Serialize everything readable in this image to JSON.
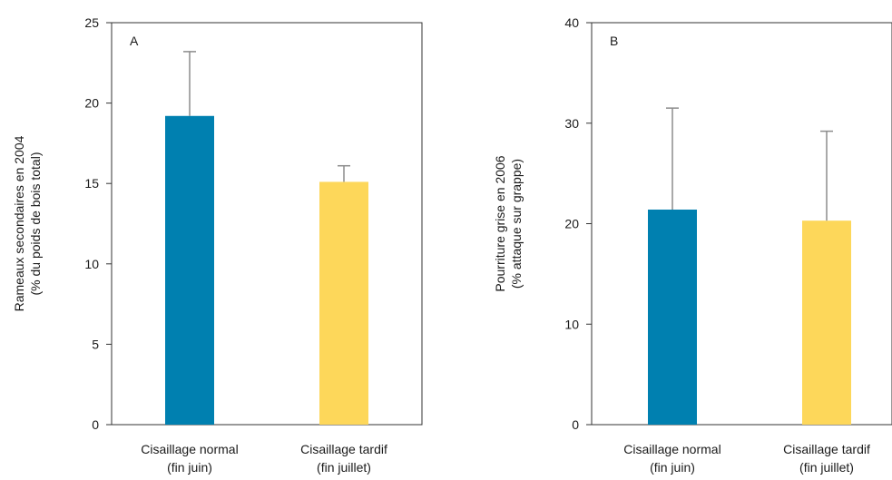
{
  "chart_data": [
    {
      "type": "bar",
      "panel_label": "A",
      "ylabel_lines": [
        "Rameaux secondaires en 2004",
        "(% du poids de bois total)"
      ],
      "ylim": [
        0,
        25
      ],
      "yticks": [
        0,
        5,
        10,
        15,
        20,
        25
      ],
      "categories": [
        {
          "line1": "Cisaillage normal",
          "line2": "(fin juin)"
        },
        {
          "line1": "Cisaillage tardif",
          "line2": "(fin juillet)"
        }
      ],
      "values": [
        19.2,
        15.1
      ],
      "errors": [
        4.0,
        1.0
      ],
      "colors": [
        "#0080b0",
        "#fdd75a"
      ]
    },
    {
      "type": "bar",
      "panel_label": "B",
      "ylabel_lines": [
        "Pourriture grise en 2006",
        "(% attaque sur grappe)"
      ],
      "ylim": [
        0,
        40
      ],
      "yticks": [
        0,
        10,
        20,
        30,
        40
      ],
      "categories": [
        {
          "line1": "Cisaillage normal",
          "line2": "(fin juin)"
        },
        {
          "line1": "Cisaillage tardif",
          "line2": "(fin juillet)"
        }
      ],
      "values": [
        21.4,
        20.3
      ],
      "errors": [
        10.1,
        8.9
      ],
      "colors": [
        "#0080b0",
        "#fdd75a"
      ]
    }
  ]
}
